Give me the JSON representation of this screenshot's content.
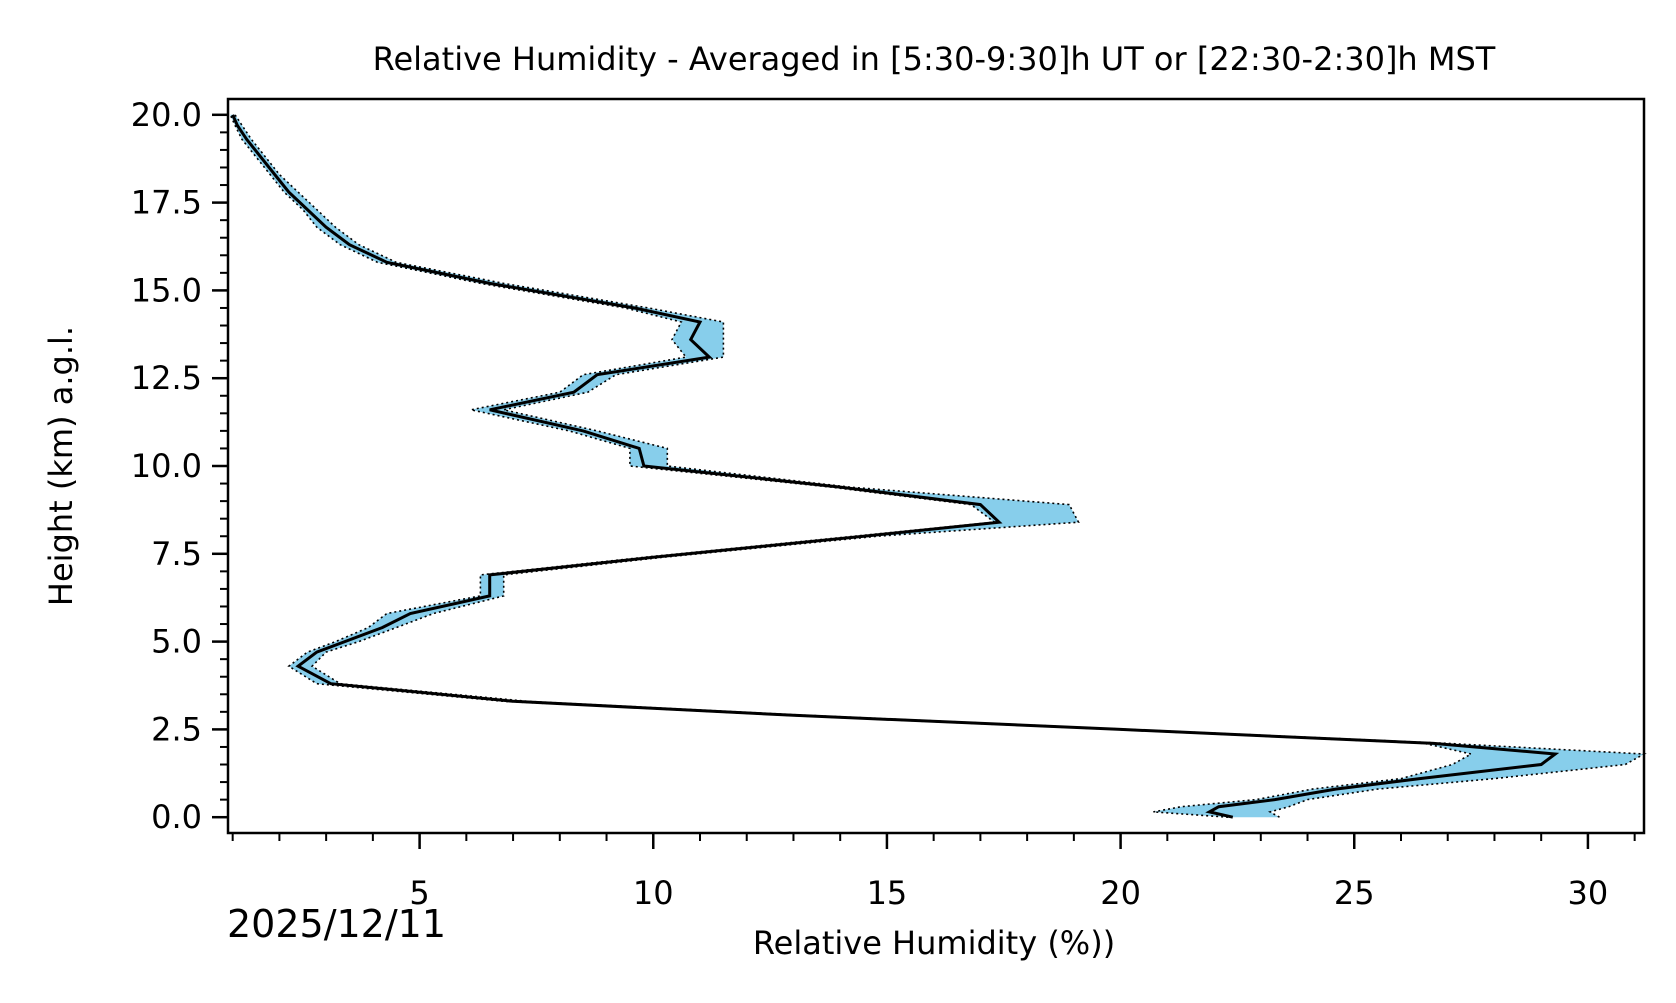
{
  "chart_data": {
    "type": "line",
    "title": "Relative Humidity - Averaged in [5:30-9:30]h UT or [22:30-2:30]h MST",
    "xlabel": "Relative Humidity (%))",
    "ylabel": "Height (km) a.g.l.",
    "date_label": "2025/12/11",
    "xlim": [
      0.9,
      31.2
    ],
    "ylim": [
      -0.45,
      20.45
    ],
    "x_ticks": [
      5,
      10,
      15,
      20,
      25,
      30
    ],
    "x_tick_labels": [
      "5",
      "10",
      "15",
      "20",
      "25",
      "30"
    ],
    "y_ticks": [
      0,
      2.5,
      5,
      7.5,
      10,
      12.5,
      15,
      17.5,
      20
    ],
    "y_tick_labels": [
      "0.0",
      "2.5",
      "5.0",
      "7.5",
      "10.0",
      "12.5",
      "15.0",
      "17.5",
      "20.0"
    ],
    "grid": false,
    "colors": {
      "band_fill": "#87ceeb",
      "mean_line": "#000000",
      "bound_line": "#000000"
    },
    "series": [
      {
        "name": "mean",
        "heights": [
          0.0,
          0.15,
          0.3,
          0.5,
          0.8,
          1.1,
          1.5,
          1.8,
          2.1,
          2.5,
          2.9,
          3.3,
          3.8,
          4.3,
          4.7,
          5.0,
          5.4,
          5.8,
          6.3,
          6.9,
          7.4,
          8.0,
          8.4,
          8.9,
          9.4,
          10.0,
          10.5,
          11.0,
          11.6,
          12.1,
          12.6,
          13.1,
          13.6,
          14.1,
          14.5,
          15.2,
          15.8,
          16.3,
          16.8,
          17.3,
          17.8,
          18.3,
          18.8,
          19.3,
          19.7,
          20.0
        ],
        "rh": [
          22.4,
          21.9,
          22.1,
          23.3,
          24.6,
          26.4,
          29.0,
          29.3,
          26.7,
          20.0,
          13.0,
          7.0,
          3.1,
          2.4,
          2.8,
          3.4,
          4.2,
          4.8,
          6.5,
          6.5,
          10.0,
          14.5,
          17.4,
          17.0,
          14.0,
          9.8,
          9.7,
          8.5,
          6.5,
          8.3,
          8.8,
          11.2,
          10.8,
          11.0,
          9.6,
          6.5,
          4.3,
          3.5,
          3.0,
          2.6,
          2.2,
          1.9,
          1.6,
          1.3,
          1.1,
          1.0
        ],
        "lower": [
          22.3,
          20.7,
          21.3,
          22.9,
          24.1,
          26.0,
          27.1,
          27.5,
          26.5,
          19.8,
          12.8,
          6.8,
          2.8,
          2.2,
          2.6,
          3.2,
          3.9,
          4.3,
          6.3,
          6.3,
          9.8,
          14.3,
          17.3,
          16.8,
          13.8,
          9.5,
          9.5,
          8.2,
          6.1,
          8.0,
          8.5,
          10.7,
          10.4,
          10.6,
          9.4,
          6.3,
          4.1,
          3.3,
          2.8,
          2.5,
          2.1,
          1.8,
          1.5,
          1.2,
          1.05,
          0.95
        ],
        "upper": [
          23.4,
          23.2,
          23.6,
          24.0,
          25.5,
          28.0,
          30.8,
          31.2,
          27.0,
          20.2,
          13.3,
          7.3,
          3.3,
          2.7,
          3.0,
          3.7,
          4.5,
          5.3,
          6.8,
          6.8,
          10.2,
          14.8,
          19.1,
          18.9,
          14.2,
          10.3,
          10.3,
          8.8,
          6.8,
          8.6,
          9.2,
          11.5,
          11.5,
          11.5,
          9.9,
          6.8,
          4.5,
          3.7,
          3.2,
          2.8,
          2.4,
          2.0,
          1.7,
          1.4,
          1.2,
          1.05
        ]
      }
    ]
  }
}
